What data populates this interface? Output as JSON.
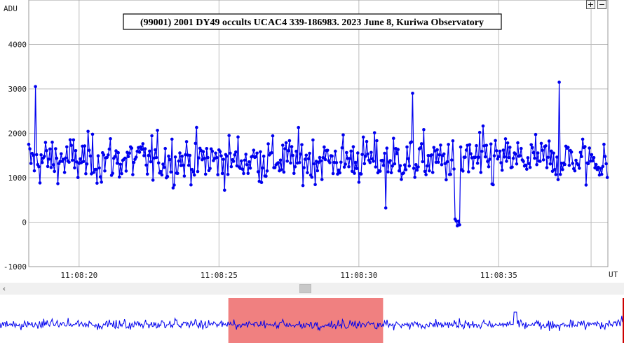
{
  "title": "(99001) 2001 DY49 occults UCAC4 339-186983. 2023 June 8, Kuriwa Observatory",
  "controls": {
    "zoom_in": "+",
    "zoom_out": "−",
    "scroll_left": "‹"
  },
  "colors": {
    "series": "#0000ee",
    "grid": "#bdbdbd",
    "selection": "#f08080",
    "axis_text": "#222222"
  },
  "chart_data": {
    "type": "line",
    "title": "(99001) 2001 DY49 occults UCAC4 339-186983. 2023 June 8, Kuriwa Observatory",
    "ylabel": "ADU",
    "xlabel": "UT",
    "ylim": [
      -1000,
      5000
    ],
    "xlim_seconds": [
      18.2,
      38.9
    ],
    "x_tick_labels": [
      "11:08:20",
      "11:08:25",
      "11:08:30",
      "11:08:35"
    ],
    "x_tick_seconds": [
      20,
      25,
      30,
      35
    ],
    "y_tick_labels": [
      "-1000",
      "0",
      "1000",
      "2000",
      "3000",
      "4000"
    ],
    "y_tick_values": [
      -1000,
      0,
      1000,
      2000,
      3000,
      4000
    ],
    "grid": true,
    "legend": "none",
    "series": [
      {
        "x_start_seconds": 18.2,
        "x_step_seconds": 0.04,
        "baseline_mean": 1400,
        "baseline_scatter": 450,
        "occultation": {
          "start_seconds": 33.4,
          "end_seconds": 33.6,
          "level": 0
        },
        "notable_points": [
          {
            "x_seconds": 18.45,
            "y": 3050
          },
          {
            "x_seconds": 30.95,
            "y": 320
          },
          {
            "x_seconds": 33.5,
            "y": -80
          },
          {
            "x_seconds": 37.15,
            "y": 3150
          },
          {
            "x_seconds": 31.9,
            "y": 2900
          }
        ]
      }
    ],
    "overview": {
      "selection_start_fraction": 0.366,
      "selection_end_fraction": 0.614
    }
  }
}
